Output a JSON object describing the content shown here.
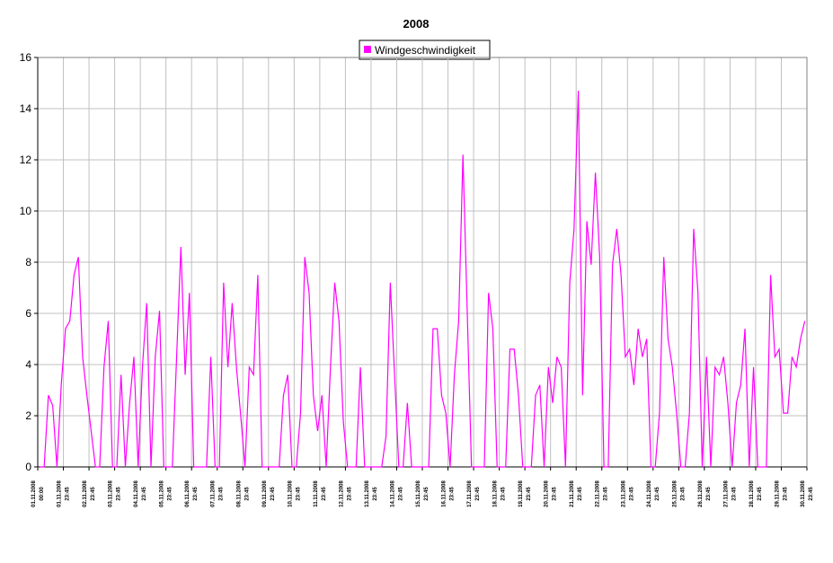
{
  "chart_data": {
    "type": "line",
    "title": "2008",
    "series": [
      {
        "name": "Windgeschwindigkeit",
        "color": "#ff00ff",
        "values": [
          0,
          0,
          2.8,
          2.4,
          0,
          3.2,
          5.4,
          5.7,
          7.5,
          8.2,
          4.3,
          2.8,
          1.4,
          0,
          0,
          3.9,
          5.7,
          0,
          0,
          3.6,
          0,
          2.5,
          4.3,
          0,
          3.9,
          6.4,
          0,
          4.3,
          6.1,
          0,
          0,
          0,
          4.3,
          8.6,
          3.6,
          6.8,
          0,
          0,
          0,
          0,
          4.3,
          0,
          0,
          7.2,
          3.9,
          6.4,
          3.9,
          2,
          0,
          3.9,
          3.6,
          7.5,
          0,
          0,
          0,
          0,
          0,
          2.8,
          3.6,
          0,
          0,
          2.1,
          8.2,
          6.8,
          2.8,
          1.4,
          2.8,
          0,
          3.9,
          7.2,
          5.7,
          1.8,
          0,
          0,
          0,
          3.9,
          0,
          0,
          0,
          0,
          0,
          1.2,
          7.2,
          3.6,
          0,
          0,
          2.5,
          0,
          0,
          0,
          0,
          0,
          5.4,
          5.4,
          2.8,
          2.1,
          0,
          3.6,
          5.7,
          12.2,
          6.1,
          0,
          0,
          0,
          0,
          6.8,
          5.4,
          0,
          0,
          0,
          4.6,
          4.6,
          2.8,
          0,
          0,
          0,
          2.8,
          3.2,
          0,
          3.9,
          2.5,
          4.3,
          3.9,
          0,
          7.2,
          9.3,
          14.7,
          2.8,
          9.6,
          7.9,
          11.5,
          8.2,
          0,
          0,
          7.9,
          9.3,
          7.5,
          4.3,
          4.6,
          3.2,
          5.4,
          4.3,
          5,
          0,
          0,
          2.1,
          8.2,
          5,
          3.9,
          2.1,
          0,
          0,
          2.1,
          9.3,
          6.8,
          0,
          4.3,
          0,
          3.9,
          3.6,
          4.3,
          2.5,
          0,
          2.5,
          3.2,
          5.4,
          0,
          3.9,
          0,
          0,
          0,
          7.5,
          4.3,
          4.6,
          2.1,
          2.1,
          4.3,
          3.9,
          5,
          5.7
        ]
      }
    ],
    "xtick_labels": [
      {
        "date": "01.11.2008",
        "time": "00:00"
      },
      {
        "date": "01.11.2008",
        "time": "23:45"
      },
      {
        "date": "02.11.2008",
        "time": "23:45"
      },
      {
        "date": "03.11.2008",
        "time": "23:45"
      },
      {
        "date": "04.11.2008",
        "time": "23:45"
      },
      {
        "date": "05.11.2008",
        "time": "23:45"
      },
      {
        "date": "06.11.2008",
        "time": "23:45"
      },
      {
        "date": "07.11.2008",
        "time": "23:45"
      },
      {
        "date": "08.11.2008",
        "time": "23:45"
      },
      {
        "date": "09.11.2008",
        "time": "23:45"
      },
      {
        "date": "10.11.2008",
        "time": "23:45"
      },
      {
        "date": "11.11.2008",
        "time": "23:45"
      },
      {
        "date": "12.11.2008",
        "time": "23:45"
      },
      {
        "date": "13.11.2008",
        "time": "23:45"
      },
      {
        "date": "14.11.2008",
        "time": "23:45"
      },
      {
        "date": "15.11.2008",
        "time": "23:45"
      },
      {
        "date": "16.11.2008",
        "time": "23:45"
      },
      {
        "date": "17.11.2008",
        "time": "23:45"
      },
      {
        "date": "18.11.2008",
        "time": "23:45"
      },
      {
        "date": "19.11.2008",
        "time": "23:45"
      },
      {
        "date": "20.11.2008",
        "time": "23:45"
      },
      {
        "date": "21.11.2008",
        "time": "23:45"
      },
      {
        "date": "22.11.2008",
        "time": "23:45"
      },
      {
        "date": "23.11.2008",
        "time": "23:45"
      },
      {
        "date": "24.11.2008",
        "time": "23:45"
      },
      {
        "date": "25.11.2008",
        "time": "23:45"
      },
      {
        "date": "26.11.2008",
        "time": "23:45"
      },
      {
        "date": "27.11.2008",
        "time": "23:45"
      },
      {
        "date": "28.11.2008",
        "time": "23:45"
      },
      {
        "date": "29.11.2008",
        "time": "23:45"
      },
      {
        "date": "30.11.2008",
        "time": "23:45"
      }
    ],
    "ylim": [
      0,
      16
    ],
    "yticks": [
      0,
      2,
      4,
      6,
      8,
      10,
      12,
      14,
      16
    ],
    "grid": true
  }
}
